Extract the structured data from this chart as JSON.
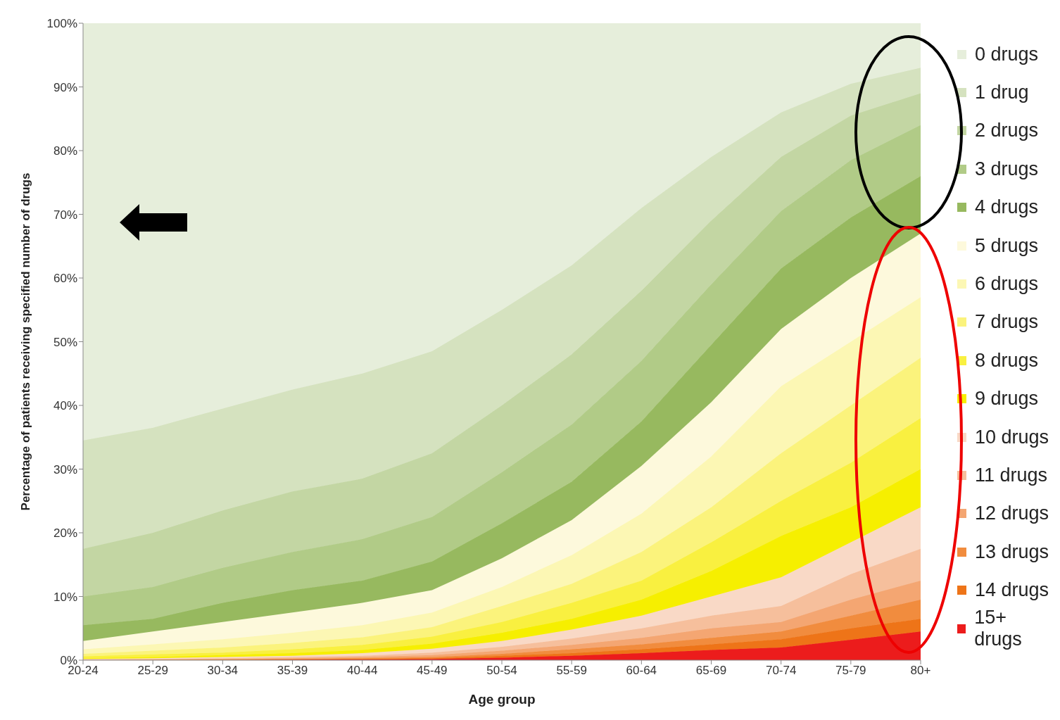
{
  "chart_data": {
    "type": "area",
    "stacked": true,
    "xlabel": "Age group",
    "ylabel": "Percentage of patients receiving specified number of drugs",
    "categories": [
      "20-24",
      "25-29",
      "30-34",
      "35-39",
      "40-44",
      "45-49",
      "50-54",
      "55-59",
      "60-64",
      "65-69",
      "70-74",
      "75-79",
      "80+"
    ],
    "ylim": [
      0,
      100
    ],
    "yticks": [
      {
        "value": 0,
        "label": "0%"
      },
      {
        "value": 10,
        "label": "10%"
      },
      {
        "value": 20,
        "label": "20%"
      },
      {
        "value": 30,
        "label": "30%"
      },
      {
        "value": 40,
        "label": "40%"
      },
      {
        "value": 50,
        "label": "50%"
      },
      {
        "value": 60,
        "label": "60%"
      },
      {
        "value": 70,
        "label": "70%"
      },
      {
        "value": 80,
        "label": "80%"
      },
      {
        "value": 90,
        "label": "90%"
      },
      {
        "value": 100,
        "label": "100%"
      }
    ],
    "grid": false,
    "legend": "right",
    "series": [
      {
        "name": "15+ drugs",
        "color": "#ec1c1c",
        "values": [
          0,
          0,
          0,
          0.1,
          0.1,
          0.2,
          0.4,
          0.7,
          1.1,
          1.6,
          2,
          3.2,
          4.5
        ]
      },
      {
        "name": "14 drugs",
        "color": "#ee7418",
        "values": [
          0,
          0,
          0.1,
          0,
          0.1,
          0.1,
          0.3,
          0.4,
          0.6,
          0.9,
          1.3,
          1.8,
          2
        ]
      },
      {
        "name": "13 drugs",
        "color": "#f18c3e",
        "values": [
          0,
          0.1,
          0,
          0.1,
          0.1,
          0.2,
          0.3,
          0.6,
          0.8,
          1,
          1.2,
          2,
          3
        ]
      },
      {
        "name": "12 drugs",
        "color": "#f4a672",
        "values": [
          0.1,
          0,
          0.1,
          0.1,
          0.2,
          0.3,
          0.5,
          0.7,
          1,
          1.5,
          1.5,
          2.5,
          3
        ]
      },
      {
        "name": "11 drugs",
        "color": "#f6bf9c",
        "values": [
          0,
          0.1,
          0.1,
          0.2,
          0.2,
          0.4,
          0.6,
          1,
          1.5,
          2,
          2.5,
          4,
          5
        ]
      },
      {
        "name": "10 drugs",
        "color": "#f9d9c6",
        "values": [
          0.1,
          0.1,
          0.2,
          0.2,
          0.4,
          0.6,
          0.9,
          1.4,
          2,
          3,
          4.5,
          5,
          6.5
        ]
      },
      {
        "name": "9 drugs",
        "color": "#f6ef00",
        "values": [
          0.1,
          0.2,
          0.3,
          0.4,
          0.5,
          0.8,
          1.3,
          1.7,
          2.5,
          4,
          6.5,
          5.5,
          6
        ]
      },
      {
        "name": "8 drugs",
        "color": "#f9f040",
        "values": [
          0.3,
          0.4,
          0.4,
          0.6,
          0.8,
          1.1,
          1.7,
          2.5,
          3,
          4.5,
          5.5,
          7,
          8
        ]
      },
      {
        "name": "7 drugs",
        "color": "#fbf37c",
        "values": [
          0.4,
          0.6,
          0.8,
          1,
          1.2,
          1.5,
          2.5,
          3,
          4.5,
          5.5,
          7.5,
          9,
          9.5
        ]
      },
      {
        "name": "6 drugs",
        "color": "#fcf7b4",
        "values": [
          0.7,
          1,
          1.3,
          1.6,
          1.9,
          2.3,
          3,
          4.5,
          6,
          8,
          10.5,
          10,
          9.5
        ]
      },
      {
        "name": "5 drugs",
        "color": "#fdf9dc",
        "values": [
          1.3,
          2,
          2.7,
          3.2,
          3.5,
          3.5,
          4.5,
          5.5,
          7.5,
          8.5,
          9,
          10,
          10
        ]
      },
      {
        "name": "4 drugs",
        "color": "#97b95f",
        "values": [
          2.5,
          2,
          3,
          3.5,
          3.5,
          4.5,
          5.5,
          6,
          7,
          9,
          9.5,
          9.5,
          9
        ]
      },
      {
        "name": "3 drugs",
        "color": "#b1cb87",
        "values": [
          4.5,
          5,
          5.5,
          6,
          6.5,
          7,
          8,
          9,
          9.5,
          9.5,
          9,
          9,
          8
        ]
      },
      {
        "name": "2 drugs",
        "color": "#c3d6a3",
        "values": [
          7.5,
          8.5,
          9,
          9.5,
          9.5,
          10,
          10.5,
          11,
          11,
          10,
          8.5,
          7,
          5
        ]
      },
      {
        "name": "1 drug",
        "color": "#d5e2bf",
        "values": [
          17,
          16.5,
          16,
          16,
          16.5,
          16,
          15,
          14,
          13,
          10,
          7,
          5,
          4
        ]
      },
      {
        "name": "0 drugs",
        "color": "#e6eedb",
        "values": [
          65.5,
          63.5,
          60.5,
          57.5,
          55,
          51.5,
          45,
          38,
          29,
          21,
          14,
          9.5,
          7
        ]
      }
    ]
  }
}
